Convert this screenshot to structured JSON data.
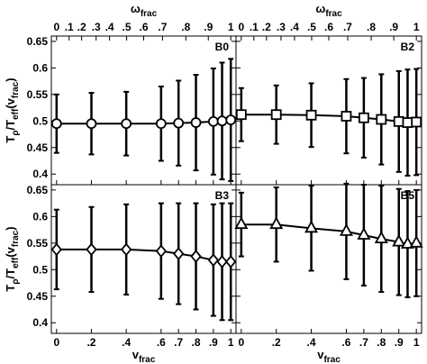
{
  "chart_data": [
    {
      "type": "line",
      "title": "B0",
      "marker": "circle",
      "color": "#000000",
      "x": [
        0,
        0.2,
        0.4,
        0.6,
        0.7,
        0.8,
        0.9,
        0.95,
        1
      ],
      "values": [
        0.495,
        0.495,
        0.495,
        0.495,
        0.496,
        0.497,
        0.499,
        0.5,
        0.502
      ],
      "errors": [
        0.055,
        0.058,
        0.06,
        0.07,
        0.08,
        0.09,
        0.1,
        0.11,
        0.115
      ],
      "xlim": [
        -0.03,
        1.03
      ],
      "ylim": [
        0.38,
        0.66
      ],
      "yticks": [
        0.4,
        0.45,
        0.5,
        0.55,
        0.6,
        0.65
      ],
      "ylabel": [
        {
          "text": "T",
          "sub": "ρ"
        },
        {
          "text": "/T",
          "sub": "eff"
        },
        {
          "text": "(v",
          "sub": "frac"
        },
        {
          "text": ")"
        }
      ],
      "xticks": [
        0,
        0.2,
        0.4,
        0.6,
        0.7,
        0.8,
        0.9,
        1
      ],
      "x2ticks": [
        0,
        {
          "value": 0.072,
          "label": ".1"
        },
        {
          "value": 0.144,
          "label": ".2"
        },
        {
          "value": 0.227,
          "label": ".3"
        },
        {
          "value": 0.304,
          "label": ".4"
        },
        {
          "value": 0.402,
          "label": ".5"
        },
        {
          "value": 0.5,
          "label": ".6"
        },
        {
          "value": 0.608,
          "label": ".7"
        },
        {
          "value": 0.742,
          "label": ".8"
        },
        {
          "value": 0.871,
          "label": ".9"
        },
        1
      ],
      "x2label": {
        "text": "ω",
        "sub": "frac"
      }
    },
    {
      "type": "line",
      "title": "B2",
      "marker": "square",
      "color": "#000000",
      "x": [
        0,
        0.2,
        0.4,
        0.6,
        0.7,
        0.8,
        0.9,
        0.95,
        1
      ],
      "values": [
        0.512,
        0.512,
        0.511,
        0.509,
        0.506,
        0.503,
        0.499,
        0.497,
        0.498
      ],
      "errors": [
        0.05,
        0.055,
        0.06,
        0.07,
        0.075,
        0.085,
        0.095,
        0.1,
        0.1
      ],
      "xlim": [
        -0.03,
        1.03
      ],
      "ylim": [
        0.38,
        0.66
      ],
      "yticks": [
        0.4,
        0.45,
        0.5,
        0.55,
        0.6,
        0.65
      ],
      "xticks": [
        0,
        0.2,
        0.4,
        0.6,
        0.7,
        0.8,
        0.9,
        1
      ],
      "x2ticks": [
        0,
        {
          "value": 0.072,
          "label": ".1"
        },
        {
          "value": 0.144,
          "label": ".2"
        },
        {
          "value": 0.227,
          "label": ".3"
        },
        {
          "value": 0.304,
          "label": ".4"
        },
        {
          "value": 0.402,
          "label": ".5"
        },
        {
          "value": 0.5,
          "label": ".6"
        },
        {
          "value": 0.608,
          "label": ".7"
        },
        {
          "value": 0.742,
          "label": ".8"
        },
        {
          "value": 0.871,
          "label": ".9"
        },
        1
      ],
      "x2label": {
        "text": "ω",
        "sub": "frac"
      }
    },
    {
      "type": "line",
      "title": "B3",
      "marker": "diamond",
      "color": "#000000",
      "x": [
        0,
        0.2,
        0.4,
        0.6,
        0.7,
        0.8,
        0.9,
        0.95,
        1
      ],
      "values": [
        0.538,
        0.538,
        0.538,
        0.535,
        0.53,
        0.525,
        0.518,
        0.515,
        0.515
      ],
      "errors": [
        0.075,
        0.08,
        0.085,
        0.09,
        0.095,
        0.1,
        0.105,
        0.11,
        0.11
      ],
      "xlim": [
        -0.03,
        1.03
      ],
      "ylim": [
        0.38,
        0.66
      ],
      "yticks": [
        0.4,
        0.45,
        0.5,
        0.55,
        0.6,
        0.65
      ],
      "ylabel": [
        {
          "text": "T",
          "sub": "ρ"
        },
        {
          "text": "/T",
          "sub": "eff"
        },
        {
          "text": "(v",
          "sub": "frac"
        },
        {
          "text": ")"
        }
      ],
      "xticks": [
        0,
        {
          "value": 0.2,
          "label": ".2"
        },
        {
          "value": 0.4,
          "label": ".4"
        },
        {
          "value": 0.6,
          "label": ".6"
        },
        {
          "value": 0.7,
          "label": ".7"
        },
        {
          "value": 0.8,
          "label": ".8"
        },
        {
          "value": 0.9,
          "label": ".9"
        },
        1
      ],
      "xlabel": {
        "text": "v",
        "sub": "frac"
      }
    },
    {
      "type": "line",
      "title": "B5",
      "marker": "triangle",
      "color": "#000000",
      "x": [
        0,
        0.2,
        0.4,
        0.6,
        0.7,
        0.8,
        0.9,
        0.95,
        1
      ],
      "values": [
        0.585,
        0.585,
        0.578,
        0.572,
        0.565,
        0.558,
        0.552,
        0.548,
        0.55
      ],
      "errors": [
        0.06,
        0.07,
        0.08,
        0.09,
        0.095,
        0.1,
        0.1,
        0.1,
        0.1
      ],
      "xlim": [
        -0.03,
        1.03
      ],
      "ylim": [
        0.38,
        0.66
      ],
      "yticks": [
        0.4,
        0.45,
        0.5,
        0.55,
        0.6,
        0.65
      ],
      "xticks": [
        0,
        {
          "value": 0.2,
          "label": ".2"
        },
        {
          "value": 0.4,
          "label": ".4"
        },
        {
          "value": 0.6,
          "label": ".6"
        },
        {
          "value": 0.7,
          "label": ".7"
        },
        {
          "value": 0.8,
          "label": ".8"
        },
        {
          "value": 0.9,
          "label": ".9"
        },
        1
      ],
      "xlabel": {
        "text": "v",
        "sub": "frac"
      }
    }
  ]
}
